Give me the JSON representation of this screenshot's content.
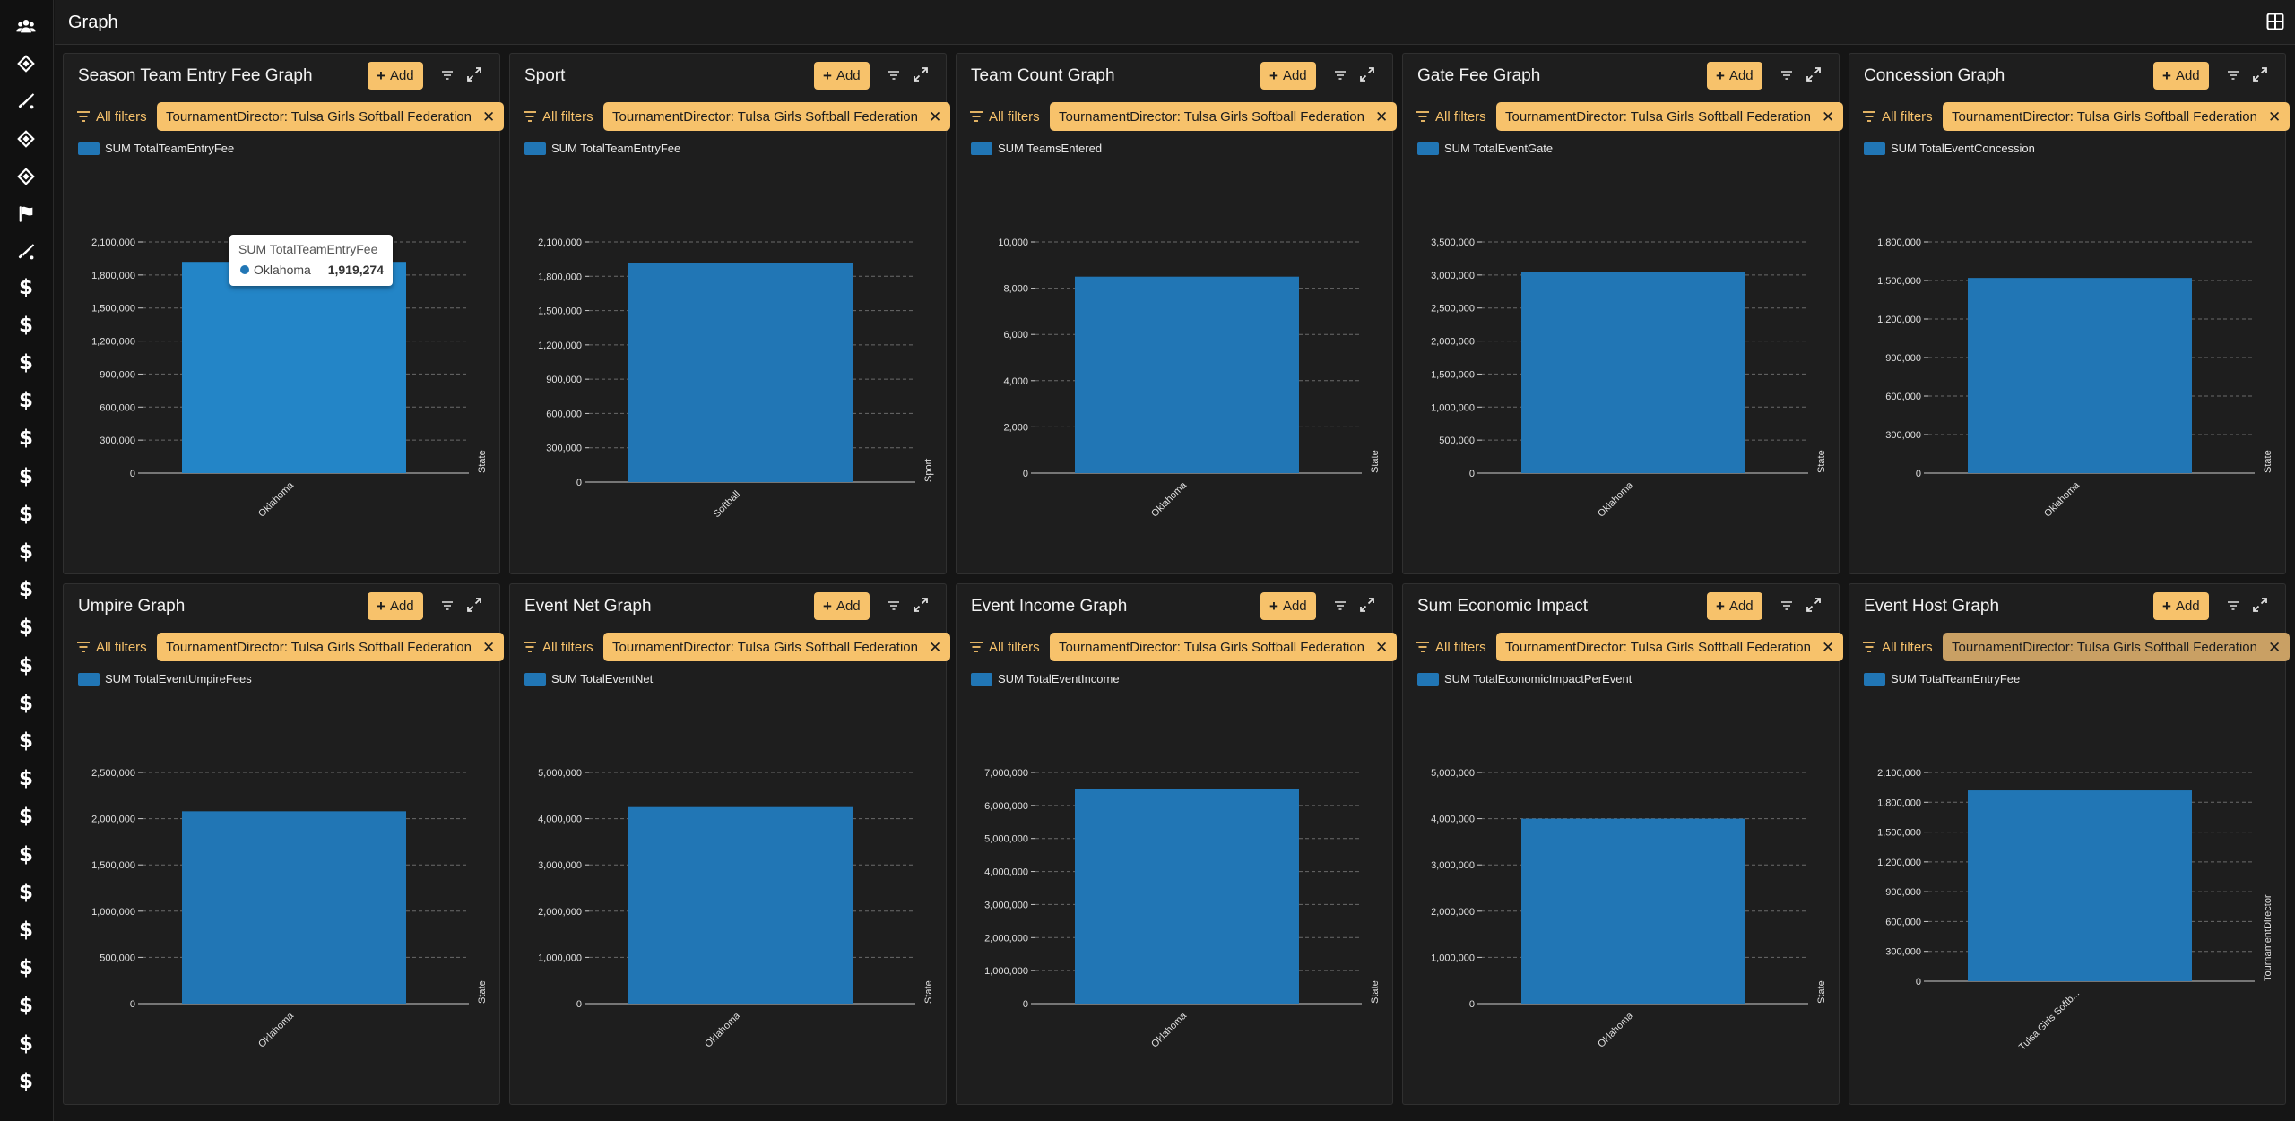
{
  "page": {
    "title": "Graph"
  },
  "sidebar": {
    "items": [
      {
        "icon": "users-icon"
      },
      {
        "icon": "diamond-icon"
      },
      {
        "icon": "bat-icon"
      },
      {
        "icon": "diamond-icon"
      },
      {
        "icon": "diamond-icon"
      },
      {
        "icon": "flag-icon"
      },
      {
        "icon": "bat-icon"
      },
      {
        "icon": "dollar-icon"
      },
      {
        "icon": "dollar-icon"
      },
      {
        "icon": "dollar-icon"
      },
      {
        "icon": "dollar-icon"
      },
      {
        "icon": "dollar-icon"
      },
      {
        "icon": "dollar-icon"
      },
      {
        "icon": "dollar-icon"
      },
      {
        "icon": "dollar-icon"
      },
      {
        "icon": "dollar-icon"
      },
      {
        "icon": "dollar-icon"
      },
      {
        "icon": "dollar-icon"
      },
      {
        "icon": "dollar-icon"
      },
      {
        "icon": "dollar-icon"
      },
      {
        "icon": "dollar-icon"
      },
      {
        "icon": "dollar-icon"
      },
      {
        "icon": "dollar-icon"
      },
      {
        "icon": "dollar-icon"
      },
      {
        "icon": "dollar-icon"
      },
      {
        "icon": "dollar-icon"
      },
      {
        "icon": "dollar-icon"
      },
      {
        "icon": "dollar-icon"
      },
      {
        "icon": "dollar-icon"
      }
    ]
  },
  "labels": {
    "add": "Add",
    "all_filters": "All filters",
    "filter_chip": "TournamentDirector: Tulsa Girls Softball Federation"
  },
  "colors": {
    "bar": "#2176b5",
    "accent": "#f7c26b"
  },
  "tooltip": {
    "title": "SUM TotalTeamEntryFee",
    "label": "Oklahoma",
    "value": "1,919,274"
  },
  "panels": [
    {
      "title": "Season Team Entry Fee Graph",
      "legend": "SUM TotalTeamEntryFee"
    },
    {
      "title": "Sport",
      "legend": "SUM TotalTeamEntryFee"
    },
    {
      "title": "Team Count Graph",
      "legend": "SUM TeamsEntered"
    },
    {
      "title": "Gate Fee Graph",
      "legend": "SUM TotalEventGate"
    },
    {
      "title": "Concession Graph",
      "legend": "SUM TotalEventConcession"
    },
    {
      "title": "Umpire Graph",
      "legend": "SUM TotalEventUmpireFees"
    },
    {
      "title": "Event Net Graph",
      "legend": "SUM TotalEventNet"
    },
    {
      "title": "Event Income Graph",
      "legend": "SUM TotalEventIncome"
    },
    {
      "title": "Sum Economic Impact",
      "legend": "SUM TotalEconomicImpactPerEvent"
    },
    {
      "title": "Event Host Graph",
      "legend": "SUM TotalTeamEntryFee"
    }
  ],
  "chart_data": [
    {
      "type": "bar",
      "categories": [
        "Oklahoma"
      ],
      "series": [
        {
          "name": "SUM TotalTeamEntryFee",
          "values": [
            1919274
          ]
        }
      ],
      "xlabel": "State",
      "ylim": [
        0,
        2100000
      ],
      "yticks": [
        "0",
        "300,000",
        "600,000",
        "900,000",
        "1,200,000",
        "1,500,000",
        "1,800,000",
        "2,100,000"
      ],
      "grid": true,
      "legend": "top-left"
    },
    {
      "type": "bar",
      "categories": [
        "Softball"
      ],
      "series": [
        {
          "name": "SUM TotalTeamEntryFee",
          "values": [
            1919274
          ]
        }
      ],
      "xlabel": "Sport",
      "ylim": [
        0,
        2100000
      ],
      "yticks": [
        "0",
        "300,000",
        "600,000",
        "900,000",
        "1,200,000",
        "1,500,000",
        "1,800,000",
        "2,100,000"
      ],
      "grid": true,
      "legend": "top-left"
    },
    {
      "type": "bar",
      "categories": [
        "Oklahoma"
      ],
      "series": [
        {
          "name": "SUM TeamsEntered",
          "values": [
            8500
          ]
        }
      ],
      "xlabel": "State",
      "ylim": [
        0,
        10000
      ],
      "yticks": [
        "0",
        "2,000",
        "4,000",
        "6,000",
        "8,000",
        "10,000"
      ],
      "grid": true,
      "legend": "top-left"
    },
    {
      "type": "bar",
      "categories": [
        "Oklahoma"
      ],
      "series": [
        {
          "name": "SUM TotalEventGate",
          "values": [
            3050000
          ]
        }
      ],
      "xlabel": "State",
      "ylim": [
        0,
        3500000
      ],
      "yticks": [
        "0",
        "500,000",
        "1,000,000",
        "1,500,000",
        "2,000,000",
        "2,500,000",
        "3,000,000",
        "3,500,000"
      ],
      "grid": true,
      "legend": "top-left"
    },
    {
      "type": "bar",
      "categories": [
        "Oklahoma"
      ],
      "series": [
        {
          "name": "SUM TotalEventConcession",
          "values": [
            1520000
          ]
        }
      ],
      "xlabel": "State",
      "ylim": [
        0,
        1800000
      ],
      "yticks": [
        "0",
        "300,000",
        "600,000",
        "900,000",
        "1,200,000",
        "1,500,000",
        "1,800,000"
      ],
      "grid": true,
      "legend": "top-left"
    },
    {
      "type": "bar",
      "categories": [
        "Oklahoma"
      ],
      "series": [
        {
          "name": "SUM TotalEventUmpireFees",
          "values": [
            2080000
          ]
        }
      ],
      "xlabel": "State",
      "ylim": [
        0,
        2500000
      ],
      "yticks": [
        "0",
        "500,000",
        "1,000,000",
        "1,500,000",
        "2,000,000",
        "2,500,000"
      ],
      "grid": true,
      "legend": "top-left"
    },
    {
      "type": "bar",
      "categories": [
        "Oklahoma"
      ],
      "series": [
        {
          "name": "SUM TotalEventNet",
          "values": [
            4250000
          ]
        }
      ],
      "xlabel": "State",
      "ylim": [
        0,
        5000000
      ],
      "yticks": [
        "0",
        "1,000,000",
        "2,000,000",
        "3,000,000",
        "4,000,000",
        "5,000,000"
      ],
      "grid": true,
      "legend": "top-left"
    },
    {
      "type": "bar",
      "categories": [
        "Oklahoma"
      ],
      "series": [
        {
          "name": "SUM TotalEventIncome",
          "values": [
            6500000
          ]
        }
      ],
      "xlabel": "State",
      "ylim": [
        0,
        7000000
      ],
      "yticks": [
        "0",
        "1,000,000",
        "2,000,000",
        "3,000,000",
        "4,000,000",
        "5,000,000",
        "6,000,000",
        "7,000,000"
      ],
      "grid": true,
      "legend": "top-left"
    },
    {
      "type": "bar",
      "categories": [
        "Oklahoma"
      ],
      "series": [
        {
          "name": "SUM TotalEconomicImpactPerEvent",
          "values": [
            4000000
          ]
        }
      ],
      "xlabel": "State",
      "ylim": [
        0,
        5000000
      ],
      "yticks": [
        "0",
        "1,000,000",
        "2,000,000",
        "3,000,000",
        "4,000,000",
        "5,000,000"
      ],
      "grid": true,
      "legend": "top-left"
    },
    {
      "type": "bar",
      "categories": [
        "Tulsa Girls Softb..."
      ],
      "series": [
        {
          "name": "SUM TotalTeamEntryFee",
          "values": [
            1919274
          ]
        }
      ],
      "xlabel": "TournamentDirector",
      "ylim": [
        0,
        2100000
      ],
      "yticks": [
        "0",
        "300,000",
        "600,000",
        "900,000",
        "1,200,000",
        "1,500,000",
        "1,800,000",
        "2,100,000"
      ],
      "grid": true,
      "legend": "top-left"
    }
  ]
}
